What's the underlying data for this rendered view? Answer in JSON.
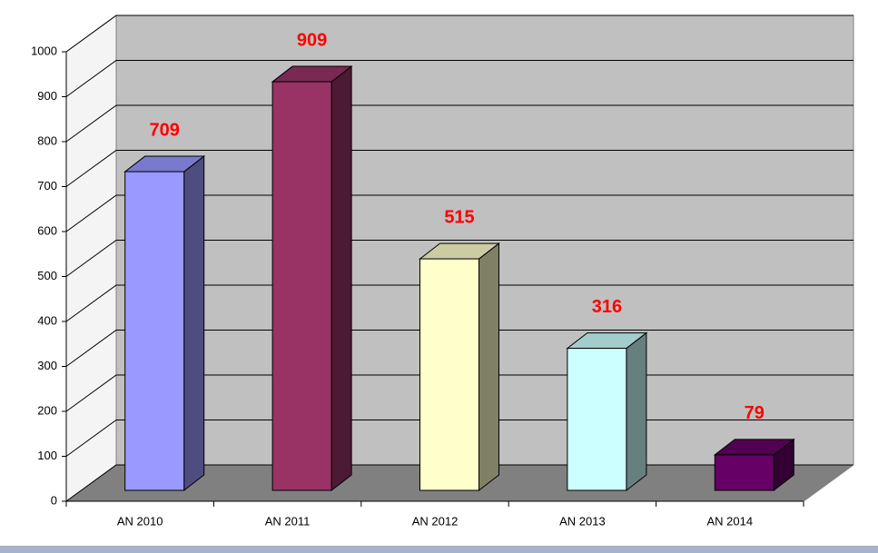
{
  "chart_data": {
    "type": "bar3d",
    "categories": [
      "AN 2010",
      "AN 2011",
      "AN 2012",
      "AN 2013",
      "AN 2014"
    ],
    "values": [
      709,
      909,
      515,
      316,
      79
    ],
    "colors": [
      "#9999ff",
      "#993366",
      "#ffffcc",
      "#ccffff",
      "#660066"
    ],
    "ylim": [
      0,
      1000
    ],
    "yticks": [
      0,
      100,
      200,
      300,
      400,
      500,
      600,
      700,
      800,
      900,
      1000
    ],
    "grid": true
  }
}
